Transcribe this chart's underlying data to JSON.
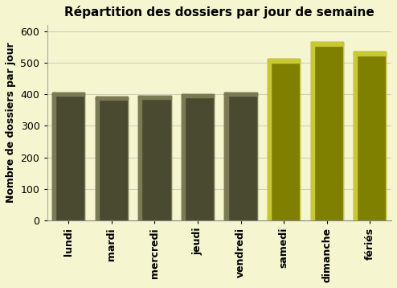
{
  "categories": [
    "lundi",
    "mardi",
    "mercredi",
    "jeudi",
    "vendredi",
    "samedi",
    "dimanche",
    "fériés"
  ],
  "values": [
    405,
    392,
    396,
    400,
    405,
    513,
    567,
    537
  ],
  "bar_colors_dark": [
    "#4a4a30",
    "#4a4a30",
    "#4a4a30",
    "#4a4a30",
    "#4a4a30",
    "#808000",
    "#808000",
    "#808000"
  ],
  "bar_colors_light": [
    "#7a7a55",
    "#7a7a55",
    "#7a7a55",
    "#7a7a55",
    "#7a7a55",
    "#c8c832",
    "#c8c832",
    "#c8c832"
  ],
  "title": "Répartition des dossiers par jour de semaine",
  "ylabel": "Nombre de dossiers par jour",
  "xlabel": "",
  "ylim": [
    0,
    620
  ],
  "yticks": [
    0,
    100,
    200,
    300,
    400,
    500,
    600
  ],
  "background_color": "#f5f5d0",
  "grid_color": "#d0d0c0",
  "title_fontsize": 11,
  "axis_fontsize": 9,
  "tick_fontsize": 9,
  "bar_width": 0.75
}
